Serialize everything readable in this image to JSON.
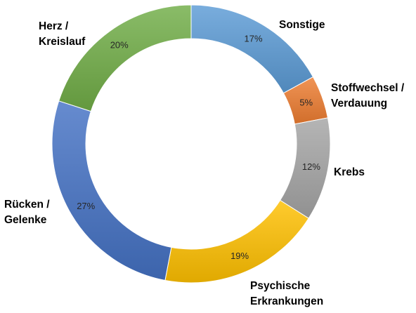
{
  "chart_data": {
    "type": "pie",
    "variant": "doughnut",
    "title": "",
    "slices": [
      {
        "category": [
          "Sonstige"
        ],
        "value": 17,
        "label": "17%",
        "color": "#5b9bd5"
      },
      {
        "category": [
          "Stoffwechsel /",
          "Verdauung"
        ],
        "value": 5,
        "label": "5%",
        "color": "#ed7d31"
      },
      {
        "category": [
          "Krebs"
        ],
        "value": 12,
        "label": "12%",
        "color": "#a5a5a5"
      },
      {
        "category": [
          "Psychische",
          "Erkrankungen"
        ],
        "value": 19,
        "label": "19%",
        "color": "#ffc000"
      },
      {
        "category": [
          "Rücken /",
          "Gelenke"
        ],
        "value": 27,
        "label": "27%",
        "color": "#4472c4"
      },
      {
        "category": [
          "Herz /",
          "Kreislauf"
        ],
        "value": 20,
        "label": "20%",
        "color": "#70ad47"
      }
    ],
    "legend": "none"
  }
}
